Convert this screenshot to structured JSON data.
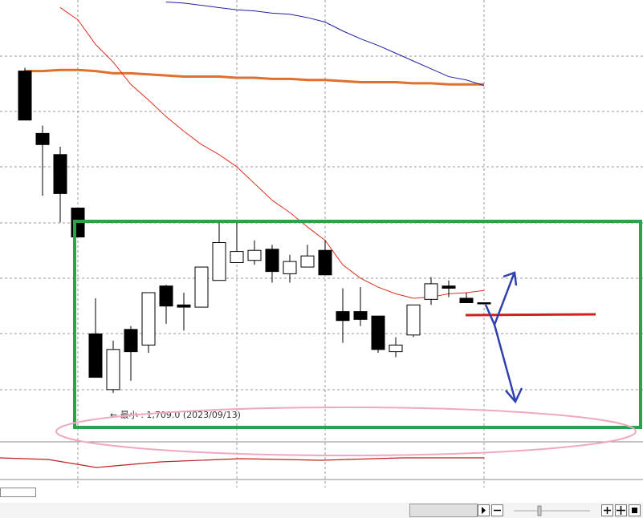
{
  "chart_data": {
    "type": "candlestick",
    "annotation": "← 最小 : 1,709.0 (2023/09/13)",
    "ylim": [
      1665.8,
      2061.8
    ],
    "colors": {
      "up": "#ffffff",
      "down": "#000000"
    },
    "ohlc": {
      "open": [
        1998,
        1942,
        1923,
        1875,
        1762,
        1712,
        1766,
        1752,
        1805,
        1788,
        1786,
        1810,
        1826,
        1828,
        1838,
        1816,
        1822,
        1837,
        1782,
        1782,
        1778,
        1746,
        1761,
        1793,
        1805,
        1794,
        1790
      ],
      "high": [
        2001,
        1949,
        1930,
        1875,
        1794,
        1756,
        1769,
        1799,
        1806,
        1799,
        1822,
        1862,
        1862,
        1846,
        1842,
        1833,
        1842,
        1846,
        1803,
        1804,
        1778,
        1759,
        1788,
        1813,
        1810,
        1799,
        1790
      ],
      "low": [
        1954,
        1886,
        1862,
        1849,
        1723,
        1709,
        1720,
        1745,
        1771,
        1765,
        1786,
        1810,
        1826,
        1824,
        1808,
        1808,
        1822,
        1815,
        1754,
        1769,
        1745,
        1741,
        1759,
        1788,
        1795,
        1790,
        1790
      ],
      "close": [
        1954,
        1932,
        1888,
        1849,
        1723,
        1748,
        1746,
        1799,
        1787,
        1786,
        1822,
        1844,
        1836,
        1837,
        1818,
        1827,
        1832,
        1815,
        1774,
        1775,
        1748,
        1752,
        1788,
        1807,
        1803,
        1790,
        1790
      ]
    },
    "lines": [
      {
        "color": "#e07030",
        "width": 3,
        "values": [
          1998,
          1998,
          1999,
          1999,
          1998,
          1996,
          1996,
          1995,
          1994,
          1993,
          1993,
          1993,
          1992,
          1992,
          1991,
          1991,
          1990,
          1990,
          1989,
          1988,
          1988,
          1988,
          1987,
          1987,
          1986,
          1986,
          1986
        ]
      },
      {
        "color": "#e03020",
        "width": 1,
        "values": [
          null,
          null,
          2055,
          2044,
          2022,
          2006,
          1986,
          1972,
          1957,
          1944,
          1932,
          1923,
          1912,
          1897,
          1882,
          1871,
          1858,
          1846,
          1824,
          1812,
          1804,
          1798,
          1794,
          1795,
          1798,
          1799,
          1801
        ]
      },
      {
        "color": "#2020a0",
        "width": 1,
        "values": [
          null,
          null,
          null,
          null,
          null,
          null,
          null,
          null,
          2060,
          2059,
          2057,
          2055,
          2053,
          2052,
          2050,
          2049,
          2046,
          2042,
          2034,
          2027,
          2021,
          2014,
          2007,
          2000,
          1993,
          1990,
          1985
        ]
      }
    ]
  }
}
